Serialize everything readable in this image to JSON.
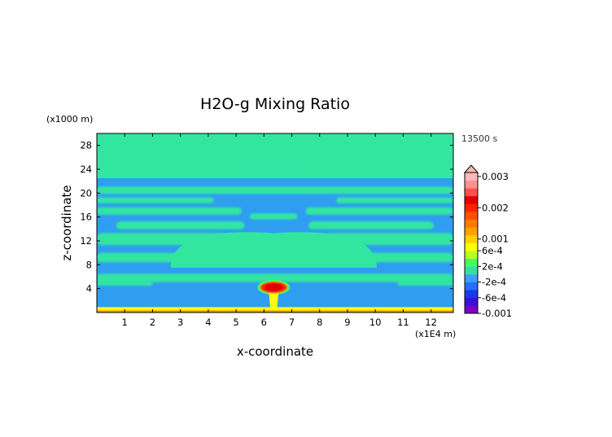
{
  "chart_data": {
    "type": "heatmap",
    "title": "H2O-g Mixing Ratio",
    "xlabel": "x-coordinate",
    "ylabel": "z-coordinate",
    "x_unit": "(x1E4 m)",
    "y_unit": "(x1000 m)",
    "time_label": "13500 s",
    "xlim": [
      0,
      12.8
    ],
    "ylim": [
      0,
      30
    ],
    "x_ticks": [
      1,
      2,
      3,
      4,
      5,
      6,
      7,
      8,
      9,
      10,
      11,
      12
    ],
    "y_ticks": [
      4,
      8,
      12,
      16,
      20,
      24,
      28
    ],
    "colorbar": {
      "levels": [
        {
          "color": "#7a00c8"
        },
        {
          "color": "#3a10d8"
        },
        {
          "color": "#1838f0"
        },
        {
          "color": "#2a6cff"
        },
        {
          "color": "#3aa0ff"
        },
        {
          "color": "#33e0a0"
        },
        {
          "color": "#40ff60"
        },
        {
          "color": "#b8ff20"
        },
        {
          "color": "#ffff00"
        },
        {
          "color": "#ffd000"
        },
        {
          "color": "#ffa000"
        },
        {
          "color": "#ff7800"
        },
        {
          "color": "#ff5000"
        },
        {
          "color": "#ff2000"
        },
        {
          "color": "#e00000"
        },
        {
          "color": "#ff5050"
        },
        {
          "color": "#ff9090"
        },
        {
          "color": "#ffb8b8"
        }
      ],
      "labels": [
        {
          "text": "0.003",
          "level": 17.5
        },
        {
          "text": "0.002",
          "level": 13.5
        },
        {
          "text": "0.001",
          "level": 9.5
        },
        {
          "text": "6e-4",
          "level": 8.0
        },
        {
          "text": "2e-4",
          "level": 6.0
        },
        {
          "text": "-2e-4",
          "level": 4.0
        },
        {
          "text": "-6e-4",
          "level": 2.0
        },
        {
          "text": "-0.001",
          "level": 0.0
        }
      ]
    },
    "field": {
      "background_color": "#2f9ef0",
      "band_color": "#33e6a0",
      "surface_colors": [
        "#ffff00",
        "#ff9000"
      ],
      "plume_colors": [
        "#40ff60",
        "#ffff00",
        "#ff8000",
        "#ff2000",
        "#e00000"
      ],
      "upper_layer": {
        "z_from": 22.5,
        "z_to": 30
      },
      "bands": [
        {
          "z": 20.5,
          "thickness": 1.2,
          "x_from": 0,
          "x_to": 12.8
        },
        {
          "z": 18.8,
          "thickness": 1.0,
          "x_from": 0,
          "x_to": 4.2
        },
        {
          "z": 18.8,
          "thickness": 1.0,
          "x_from": 8.6,
          "x_to": 12.8
        },
        {
          "z": 17.0,
          "thickness": 1.2,
          "x_from": 0,
          "x_to": 5.2
        },
        {
          "z": 17.0,
          "thickness": 1.2,
          "x_from": 7.5,
          "x_to": 12.8
        },
        {
          "z": 16.1,
          "thickness": 1.0,
          "x_from": 5.5,
          "x_to": 7.2
        },
        {
          "z": 14.6,
          "thickness": 1.3,
          "x_from": 0.7,
          "x_to": 5.3
        },
        {
          "z": 14.6,
          "thickness": 1.3,
          "x_from": 7.6,
          "x_to": 12.1
        },
        {
          "z": 12.3,
          "thickness": 2.0,
          "x_from": 0,
          "x_to": 4.6
        },
        {
          "z": 12.3,
          "thickness": 2.0,
          "x_from": 8.2,
          "x_to": 12.8
        },
        {
          "z": 9.2,
          "thickness": 1.6,
          "x_from": 0,
          "x_to": 3.3
        },
        {
          "z": 9.2,
          "thickness": 1.6,
          "x_from": 9.5,
          "x_to": 12.8
        },
        {
          "z": 5.8,
          "thickness": 1.4,
          "x_from": 0,
          "x_to": 12.8
        },
        {
          "z": 4.9,
          "thickness": 0.8,
          "x_from": 0,
          "x_to": 2.0
        },
        {
          "z": 4.9,
          "thickness": 0.8,
          "x_from": 10.8,
          "x_to": 12.8
        },
        {
          "z": 24.6,
          "thickness": 0.8,
          "x_from": 5.4,
          "x_to": 7.5
        },
        {
          "z": 23.3,
          "thickness": 0.9,
          "x_from": 4.6,
          "x_to": 8.3
        }
      ],
      "central_dome": {
        "x_center": 6.35,
        "z_base": 7.5,
        "half_width": 3.7,
        "height": 5.8
      },
      "plume": {
        "x_center": 6.35,
        "z_top": 5.3,
        "z_base": 0.3
      }
    }
  }
}
